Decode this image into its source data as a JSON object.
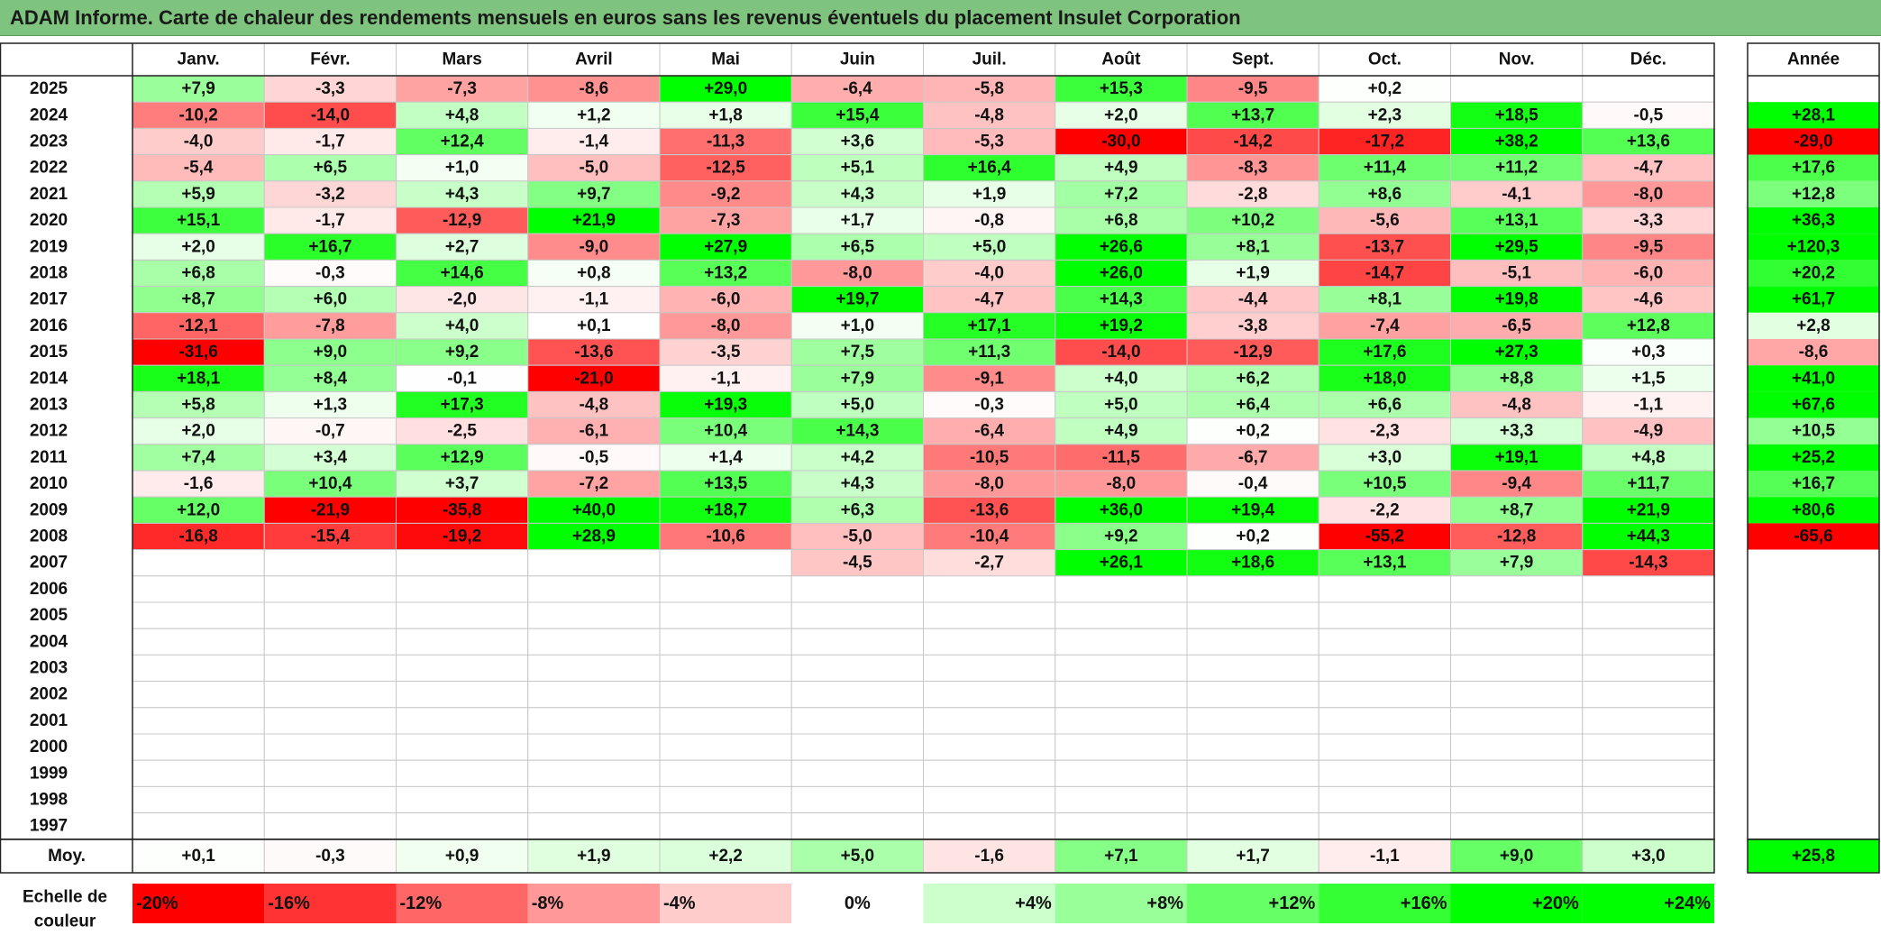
{
  "title": "ADAM Informe. Carte de chaleur des rendements mensuels en euros sans les revenus éventuels du placement Insulet Corporation",
  "chart_data": {
    "type": "heatmap",
    "months": [
      "Janv.",
      "Févr.",
      "Mars",
      "Avril",
      "Mai",
      "Juin",
      "Juil.",
      "Août",
      "Sept.",
      "Oct.",
      "Nov.",
      "Déc."
    ],
    "year_label": "Année",
    "years": [
      "2025",
      "2024",
      "2023",
      "2022",
      "2021",
      "2020",
      "2019",
      "2018",
      "2017",
      "2016",
      "2015",
      "2014",
      "2013",
      "2012",
      "2011",
      "2010",
      "2009",
      "2008",
      "2007",
      "2006",
      "2005",
      "2004",
      "2003",
      "2002",
      "2001",
      "2000",
      "1999",
      "1998",
      "1997"
    ],
    "values": [
      [
        7.9,
        -3.3,
        -7.3,
        -8.6,
        29.0,
        -6.4,
        -5.8,
        15.3,
        -9.5,
        0.2,
        null,
        null
      ],
      [
        -10.2,
        -14.0,
        4.8,
        1.2,
        1.8,
        15.4,
        -4.8,
        2.0,
        13.7,
        2.3,
        18.5,
        -0.5
      ],
      [
        -4.0,
        -1.7,
        12.4,
        -1.4,
        -11.3,
        3.6,
        -5.3,
        -30.0,
        -14.2,
        -17.2,
        38.2,
        13.6
      ],
      [
        -5.4,
        6.5,
        1.0,
        -5.0,
        -12.5,
        5.1,
        16.4,
        4.9,
        -8.3,
        11.4,
        11.2,
        -4.7
      ],
      [
        5.9,
        -3.2,
        4.3,
        9.7,
        -9.2,
        4.3,
        1.9,
        7.2,
        -2.8,
        8.6,
        -4.1,
        -8.0
      ],
      [
        15.1,
        -1.7,
        -12.9,
        21.9,
        -7.3,
        1.7,
        -0.8,
        6.8,
        10.2,
        -5.6,
        13.1,
        -3.3
      ],
      [
        2.0,
        16.7,
        2.7,
        -9.0,
        27.9,
        6.5,
        5.0,
        26.6,
        8.1,
        -13.7,
        29.5,
        -9.5
      ],
      [
        6.8,
        -0.3,
        14.6,
        0.8,
        13.2,
        -8.0,
        -4.0,
        26.0,
        1.9,
        -14.7,
        -5.1,
        -6.0
      ],
      [
        8.7,
        6.0,
        -2.0,
        -1.1,
        -6.0,
        19.7,
        -4.7,
        14.3,
        -4.4,
        8.1,
        19.8,
        -4.6
      ],
      [
        -12.1,
        -7.8,
        4.0,
        0.1,
        -8.0,
        1.0,
        17.1,
        19.2,
        -3.8,
        -7.4,
        -6.5,
        12.8
      ],
      [
        -31.6,
        9.0,
        9.2,
        -13.6,
        -3.5,
        7.5,
        11.3,
        -14.0,
        -12.9,
        17.6,
        27.3,
        0.3
      ],
      [
        18.1,
        8.4,
        -0.1,
        -21.0,
        -1.1,
        7.9,
        -9.1,
        4.0,
        6.2,
        18.0,
        8.8,
        1.5
      ],
      [
        5.8,
        1.3,
        17.3,
        -4.8,
        19.3,
        5.0,
        -0.3,
        5.0,
        6.4,
        6.6,
        -4.8,
        -1.1
      ],
      [
        2.0,
        -0.7,
        -2.5,
        -6.1,
        10.4,
        14.3,
        -6.4,
        4.9,
        0.2,
        -2.3,
        3.3,
        -4.9
      ],
      [
        7.4,
        3.4,
        12.9,
        -0.5,
        1.4,
        4.2,
        -10.5,
        -11.5,
        -6.7,
        3.0,
        19.1,
        4.8
      ],
      [
        -1.6,
        10.4,
        3.7,
        -7.2,
        13.5,
        4.3,
        -8.0,
        -8.0,
        -0.4,
        10.5,
        -9.4,
        11.7
      ],
      [
        12.0,
        -21.9,
        -35.8,
        40.0,
        18.7,
        6.3,
        -13.6,
        36.0,
        19.4,
        -2.2,
        8.7,
        21.9
      ],
      [
        -16.8,
        -15.4,
        -19.2,
        28.9,
        -10.6,
        -5.0,
        -10.4,
        9.2,
        0.2,
        -55.2,
        -12.8,
        44.3
      ],
      [
        null,
        null,
        null,
        null,
        null,
        -4.5,
        -2.7,
        26.1,
        18.6,
        13.1,
        7.9,
        -14.3
      ],
      [
        null,
        null,
        null,
        null,
        null,
        null,
        null,
        null,
        null,
        null,
        null,
        null
      ],
      [
        null,
        null,
        null,
        null,
        null,
        null,
        null,
        null,
        null,
        null,
        null,
        null
      ],
      [
        null,
        null,
        null,
        null,
        null,
        null,
        null,
        null,
        null,
        null,
        null,
        null
      ],
      [
        null,
        null,
        null,
        null,
        null,
        null,
        null,
        null,
        null,
        null,
        null,
        null
      ],
      [
        null,
        null,
        null,
        null,
        null,
        null,
        null,
        null,
        null,
        null,
        null,
        null
      ],
      [
        null,
        null,
        null,
        null,
        null,
        null,
        null,
        null,
        null,
        null,
        null,
        null
      ],
      [
        null,
        null,
        null,
        null,
        null,
        null,
        null,
        null,
        null,
        null,
        null,
        null
      ],
      [
        null,
        null,
        null,
        null,
        null,
        null,
        null,
        null,
        null,
        null,
        null,
        null
      ],
      [
        null,
        null,
        null,
        null,
        null,
        null,
        null,
        null,
        null,
        null,
        null,
        null
      ],
      [
        null,
        null,
        null,
        null,
        null,
        null,
        null,
        null,
        null,
        null,
        null,
        null
      ]
    ],
    "annual": [
      null,
      28.1,
      -29.0,
      17.6,
      12.8,
      36.3,
      120.3,
      20.2,
      61.7,
      2.8,
      -8.6,
      41.0,
      67.6,
      10.5,
      25.2,
      16.7,
      80.6,
      -65.6,
      null,
      null,
      null,
      null,
      null,
      null,
      null,
      null,
      null,
      null,
      null
    ],
    "average_label": "Moy.",
    "averages": [
      0.1,
      -0.3,
      0.9,
      1.9,
      2.2,
      5.0,
      -1.6,
      7.1,
      1.7,
      -1.1,
      9.0,
      3.0
    ],
    "average_annual": 25.8,
    "scale_label": "Echelle de couleur",
    "scale": [
      "-20%",
      "-16%",
      "-12%",
      "-8%",
      "-4%",
      "0%",
      "+4%",
      "+8%",
      "+12%",
      "+16%",
      "+20%",
      "+24%"
    ],
    "scale_values": [
      -20,
      -16,
      -12,
      -8,
      -4,
      0,
      4,
      8,
      12,
      16,
      20,
      24
    ],
    "colors": {
      "negative_max": "#ff0000",
      "zero": "#ffffff",
      "positive_max": "#00ff00",
      "title_bar": "#7ec47e"
    }
  }
}
